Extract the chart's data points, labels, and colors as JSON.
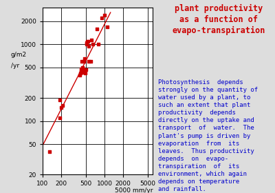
{
  "title": "plant productivity\nas a function of\nevapo-transpiration",
  "title_color": "#cc0000",
  "description_color": "#0000cc",
  "description": "Photosynthesis  depends\nstrongly on the quantity of\nwater used by a plant, to\nsuch an extent that plant\nproductivity  depends\ndirectly on the uptake and\ntransport  of  water.  The\nplant's pump is driven by\nevaporation  from  its\nleaves.  Thus productivity\ndepends  on  evapo-\ntranspiration  of  its\nenvironment, which again\ndepends on temperature\nand rainfall.",
  "xlabel_end": "5000 mm/yr",
  "scatter_x": [
    130,
    190,
    200,
    210,
    190,
    400,
    410,
    420,
    420,
    430,
    440,
    450,
    460,
    470,
    480,
    490,
    500,
    510,
    520,
    530,
    540,
    550,
    560,
    600,
    620,
    650,
    750,
    800,
    900,
    1000,
    1100
  ],
  "scatter_y": [
    40,
    110,
    150,
    160,
    190,
    400,
    420,
    450,
    480,
    600,
    500,
    480,
    430,
    600,
    650,
    420,
    470,
    1050,
    1000,
    1100,
    1100,
    950,
    600,
    600,
    1150,
    1000,
    1600,
    1000,
    2200,
    2400,
    1700
  ],
  "line_x": [
    100,
    1250
  ],
  "line_y": [
    48,
    2600
  ],
  "dot_color": "#cc0000",
  "line_color": "#cc0000",
  "background_color": "#dddddd",
  "plot_bg": "#ffffff",
  "xmin": 100,
  "xmax": 6000,
  "ymin": 20,
  "ymax": 3000,
  "xticks": [
    100,
    200,
    500,
    1000,
    2000,
    5000
  ],
  "yticks": [
    20,
    50,
    100,
    200,
    500,
    1000,
    2000
  ],
  "ylabel_lines": [
    "2000",
    "g/m2",
    "/yr",
    "1000"
  ],
  "title_fontsize": 8.5,
  "desc_fontsize": 6.5
}
